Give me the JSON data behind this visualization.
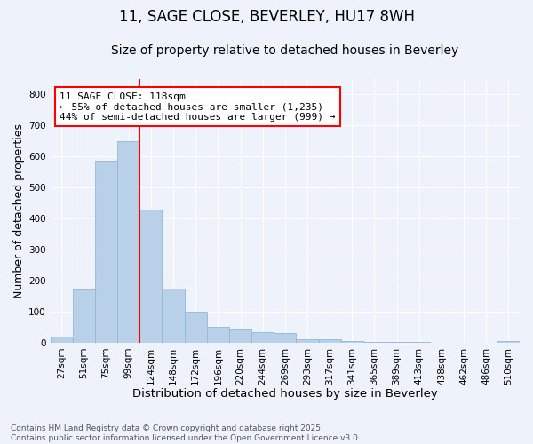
{
  "title": "11, SAGE CLOSE, BEVERLEY, HU17 8WH",
  "subtitle": "Size of property relative to detached houses in Beverley",
  "xlabel": "Distribution of detached houses by size in Beverley",
  "ylabel": "Number of detached properties",
  "categories": [
    "27sqm",
    "51sqm",
    "75sqm",
    "99sqm",
    "124sqm",
    "148sqm",
    "172sqm",
    "196sqm",
    "220sqm",
    "244sqm",
    "269sqm",
    "293sqm",
    "317sqm",
    "341sqm",
    "365sqm",
    "389sqm",
    "413sqm",
    "438sqm",
    "462sqm",
    "486sqm",
    "510sqm"
  ],
  "values": [
    20,
    170,
    585,
    648,
    430,
    175,
    100,
    50,
    42,
    35,
    30,
    12,
    10,
    4,
    2,
    1,
    1,
    0,
    0,
    0,
    5
  ],
  "bar_color": "#b8d0e8",
  "bar_edge_color": "#90b8d8",
  "vline_color": "red",
  "annotation_text": "11 SAGE CLOSE: 118sqm\n← 55% of detached houses are smaller (1,235)\n44% of semi-detached houses are larger (999) →",
  "annotation_box_color": "white",
  "annotation_box_edge": "red",
  "ylim": [
    0,
    850
  ],
  "yticks": [
    0,
    100,
    200,
    300,
    400,
    500,
    600,
    700,
    800
  ],
  "background_color": "#eef2fa",
  "grid_color": "#ffffff",
  "footer": "Contains HM Land Registry data © Crown copyright and database right 2025.\nContains public sector information licensed under the Open Government Licence v3.0.",
  "title_fontsize": 12,
  "subtitle_fontsize": 10,
  "xlabel_fontsize": 9.5,
  "ylabel_fontsize": 9,
  "tick_fontsize": 7.5,
  "annotation_fontsize": 8,
  "footer_fontsize": 6.5
}
